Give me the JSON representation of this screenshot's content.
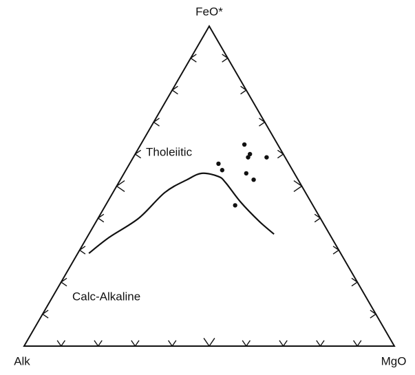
{
  "chart_data": {
    "type": "ternary",
    "labels": {
      "top": "FeO*",
      "left": "Alk",
      "right": "MgO"
    },
    "annotations": [
      "Tholeiitic",
      "Calc-Alkaline"
    ],
    "ticks": [
      10,
      20,
      30,
      40,
      50,
      60,
      70,
      80,
      90
    ],
    "points": {
      "top": [
        63,
        60,
        59,
        59,
        57,
        55,
        54,
        52,
        44
      ],
      "right": [
        28,
        31,
        31,
        36,
        24,
        26,
        33,
        36,
        35
      ],
      "left": [
        9,
        9,
        10,
        5,
        19,
        19,
        13,
        12,
        21
      ]
    },
    "boundary": {
      "top": [
        29,
        34,
        40,
        48,
        52,
        54,
        53,
        51,
        45,
        39,
        35
      ],
      "right": [
        3,
        6,
        11,
        14,
        18,
        21,
        26,
        29,
        36,
        44,
        50
      ],
      "left": [
        68,
        60,
        49,
        38,
        30,
        25,
        21,
        20,
        19,
        17,
        15
      ]
    }
  }
}
